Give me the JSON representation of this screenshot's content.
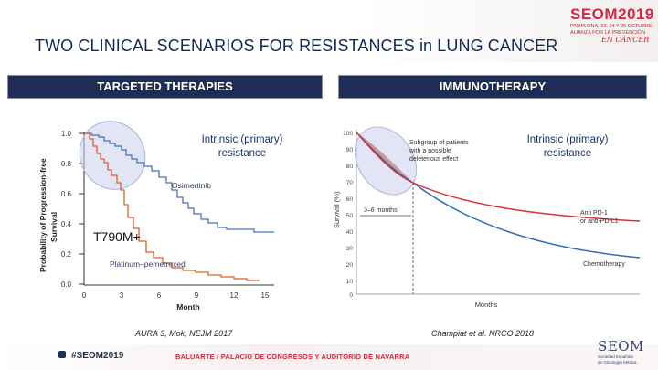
{
  "slide": {
    "title": "TWO CLINICAL SCENARIOS FOR RESISTANCES in LUNG CANCER"
  },
  "logo": {
    "brand": "SEOM",
    "year": "2019",
    "line1": "PAMPLONA, 23, 24 Y 25 OCTUBRE",
    "line2": "ALIANZA POR LA PREVENCIÓN",
    "line3": "EN CÁNCER"
  },
  "left_panel": {
    "header": "TARGETED THERAPIES",
    "overlay_line1": "Intrinsic (primary)",
    "overlay_line2": "resistance",
    "mutation_label": "T790M+",
    "citation": "AURA 3, Mok, NEJM 2017",
    "chart": {
      "ylabel_line1": "Probability of Progression-free",
      "ylabel_line2": "Survival",
      "xlabel": "Month",
      "y_ticks": [
        "1.0",
        "0.8",
        "0.6",
        "0.4",
        "0.2",
        "0.0"
      ],
      "x_ticks": [
        "0",
        "3",
        "6",
        "9",
        "12",
        "15"
      ],
      "series_osimertinib": "Osimertinib",
      "series_platinum": "Platinum–pemetrexed"
    },
    "colors": {
      "osimertinib": "#4a72b8",
      "platinum": "#d9622b"
    }
  },
  "right_panel": {
    "header": "IMMUNOTHERAPY",
    "overlay_line1": "Intrinsic (primary)",
    "overlay_line2": "resistance",
    "citation": "Champiat et al. NRCO 2018",
    "chart": {
      "ylabel": "Survival (%)",
      "xlabel": "Months",
      "y_ticks": [
        "100",
        "90",
        "80",
        "70",
        "60",
        "50",
        "40",
        "30",
        "20",
        "10",
        "0"
      ],
      "subgroup_line1": "Subgroup of patients",
      "subgroup_line2": "with a possible",
      "subgroup_line3": "deleterious effect",
      "months_label": "3–6 months",
      "label_pd1_line1": "Anti PD-1",
      "label_pd1_line2": "or anti-PD-L1",
      "label_chemo": "Chemotherapy"
    },
    "colors": {
      "pd1": "#d8333a",
      "chemo": "#2e6fb4"
    }
  },
  "footer": {
    "hashtag": "#SEOM2019",
    "venue": "BALUARTE / PALACIO DE CONGRESOS Y AUDITORIO DE NAVARRA",
    "seom": "SEOM",
    "seom_sub1": "Sociedad Española",
    "seom_sub2": "de Oncología Médica"
  }
}
